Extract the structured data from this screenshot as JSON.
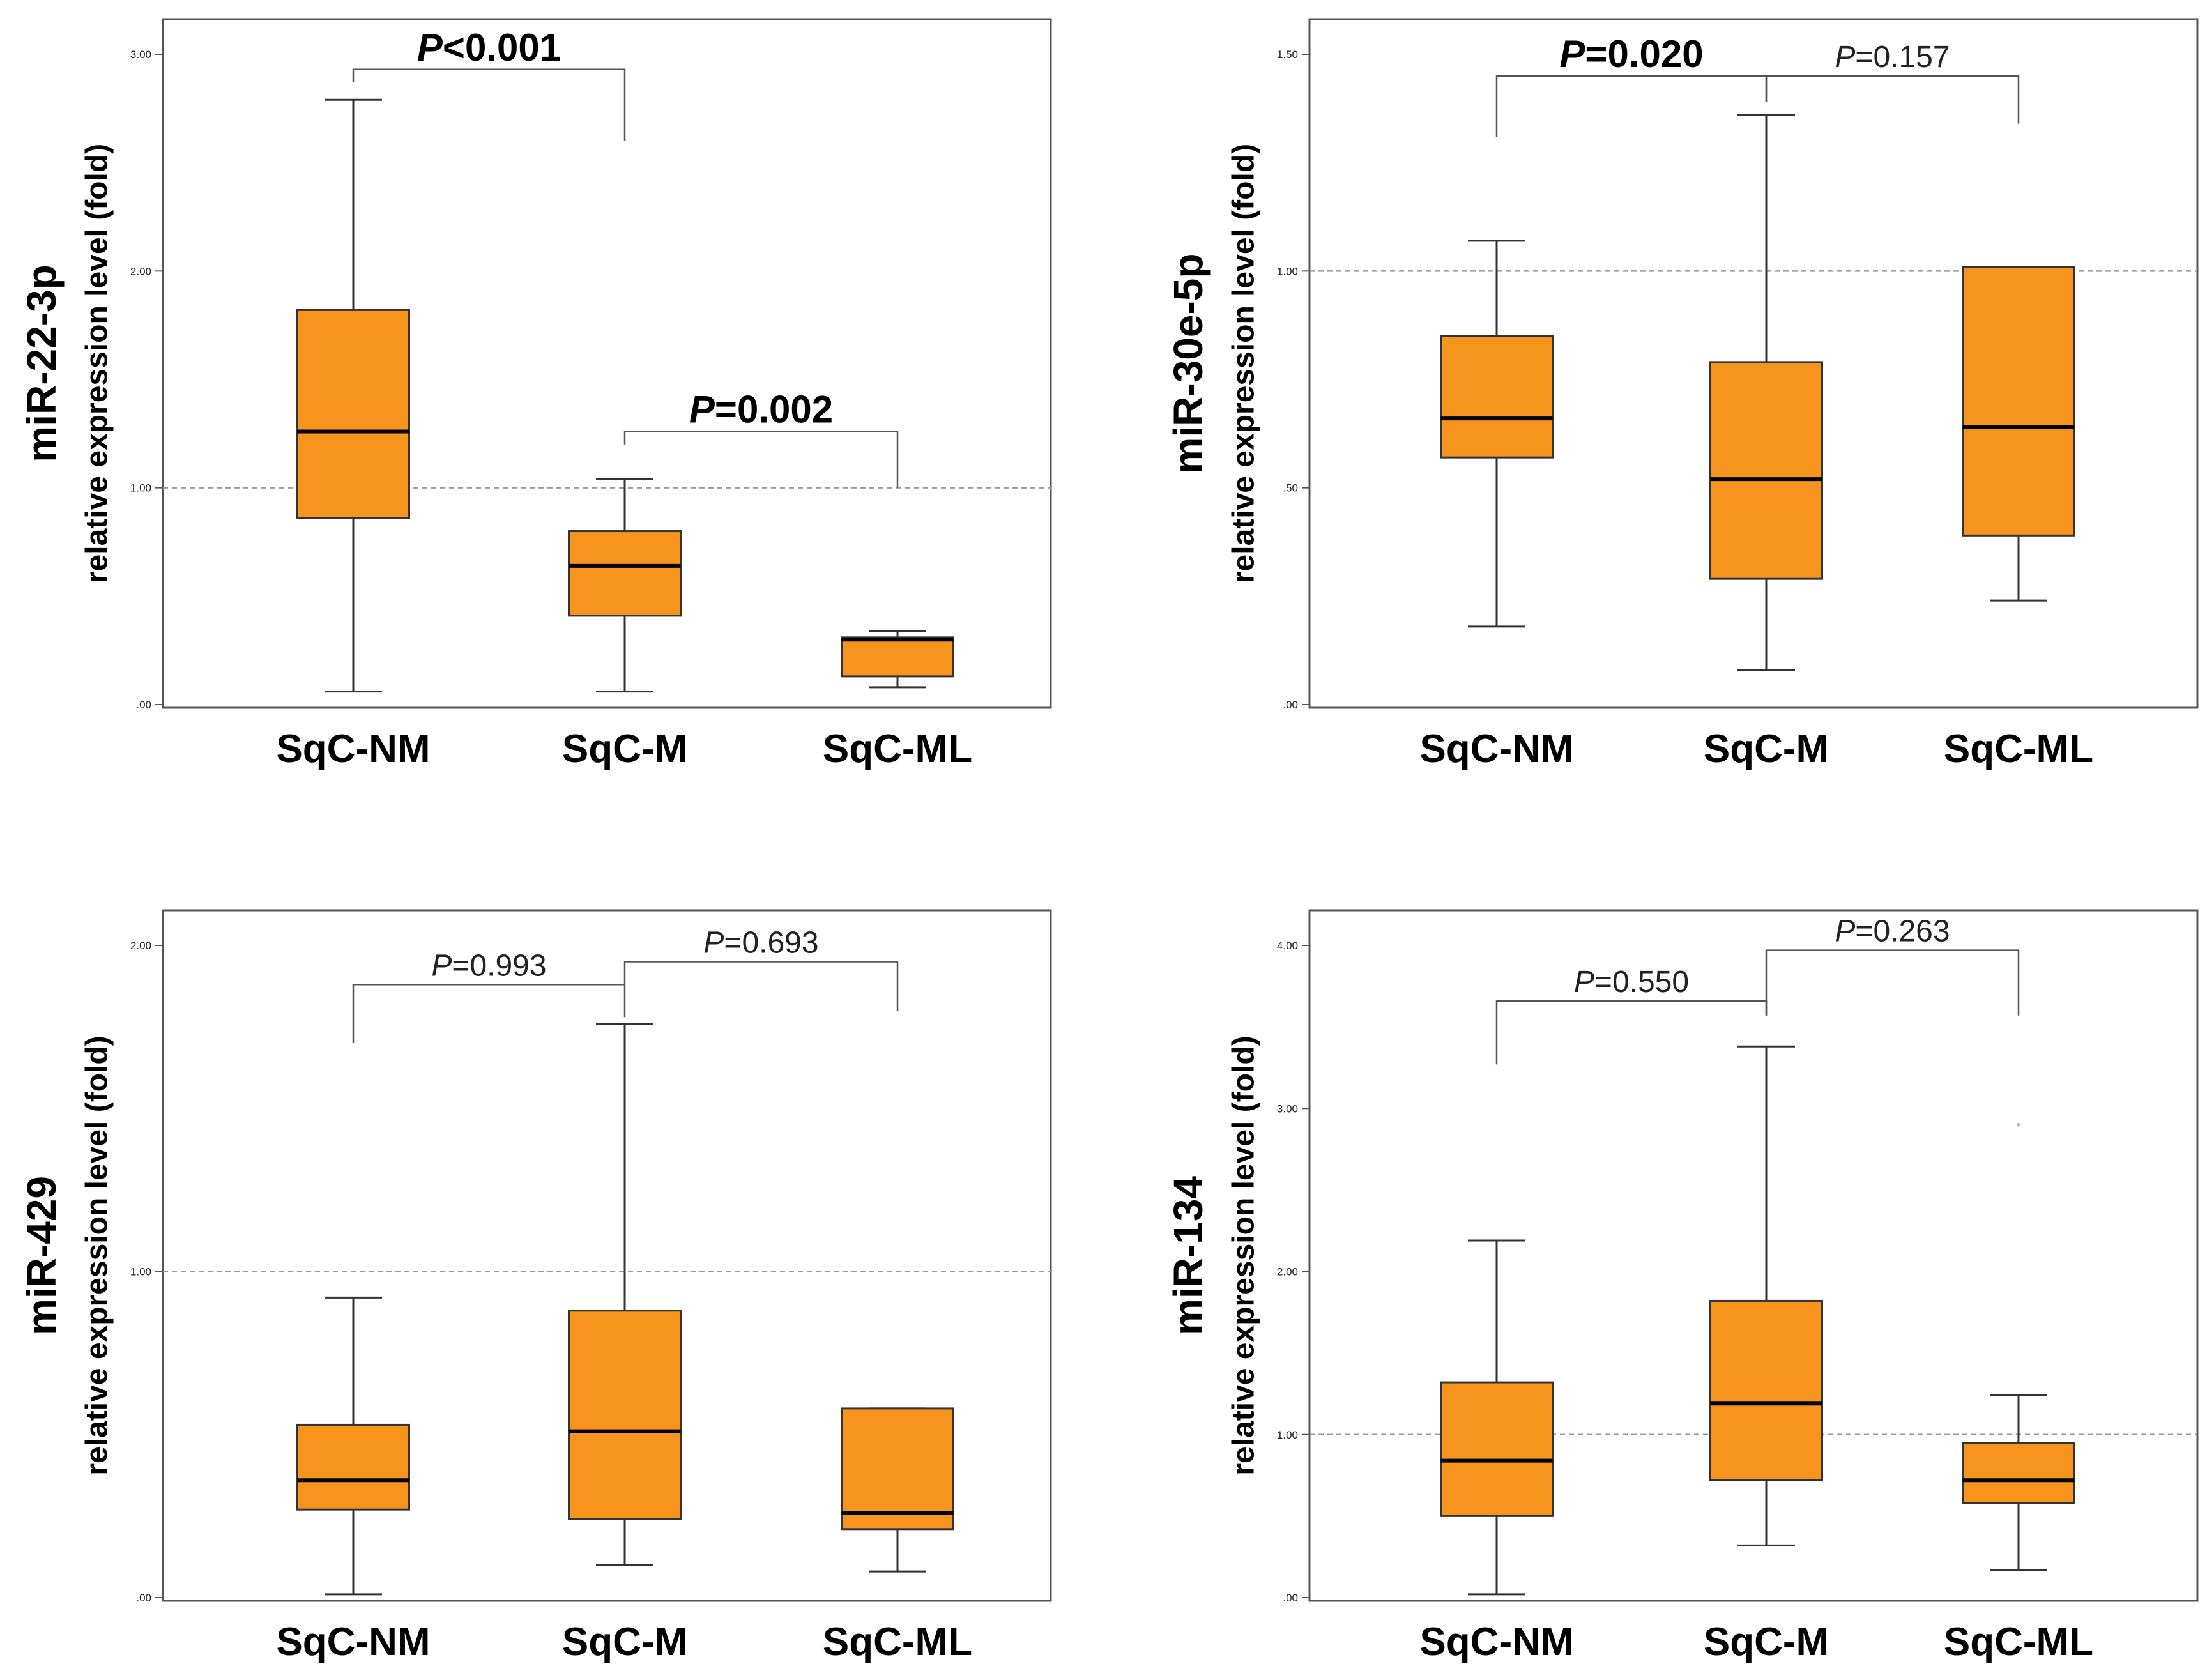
{
  "figure": {
    "background": "#ffffff",
    "box_fill": "#f7941d",
    "box_stroke": "#333333",
    "median_color": "#000000",
    "reference_line_color": "#999999"
  },
  "chart_data": [
    {
      "type": "box",
      "title": "",
      "ylabel_line1": "miR-22-3p",
      "ylabel_line2": "relative expression level (fold)",
      "ylim": [
        0,
        3
      ],
      "yticks": [
        ".00",
        "1.00",
        "2.00",
        "3.00"
      ],
      "reference_line": 1.0,
      "categories": [
        "SqC-NM",
        "SqC-M",
        "SqC-ML"
      ],
      "boxes": [
        {
          "category": "SqC-NM",
          "min": 0.06,
          "q1": 0.86,
          "median": 1.26,
          "q3": 1.82,
          "max": 2.79
        },
        {
          "category": "SqC-M",
          "min": 0.06,
          "q1": 0.41,
          "median": 0.64,
          "q3": 0.8,
          "max": 1.04
        },
        {
          "category": "SqC-ML",
          "min": 0.08,
          "q1": 0.13,
          "median": 0.3,
          "q3": 0.31,
          "max": 0.34
        }
      ],
      "comparisons": [
        {
          "from": 0,
          "to": 1,
          "label_prefix": "P",
          "label_rest": "<0.001",
          "significant": true,
          "bar_y": 2.93,
          "left_drop": 2.87,
          "right_drop": 2.6
        },
        {
          "from": 1,
          "to": 2,
          "label_prefix": "P",
          "label_rest": "=0.002",
          "significant": true,
          "bar_y": 1.26,
          "left_drop": 1.2,
          "right_drop": 1.0
        }
      ]
    },
    {
      "type": "box",
      "title": "",
      "ylabel_line1": "miR-30e-5p",
      "ylabel_line2": "relative expression level (fold)",
      "ylim": [
        0,
        1.5
      ],
      "yticks": [
        ".00",
        ".50",
        "1.00",
        "1.50"
      ],
      "reference_line": 1.0,
      "categories": [
        "SqC-NM",
        "SqC-M",
        "SqC-ML"
      ],
      "boxes": [
        {
          "category": "SqC-NM",
          "min": 0.18,
          "q1": 0.57,
          "median": 0.66,
          "q3": 0.85,
          "max": 1.07
        },
        {
          "category": "SqC-M",
          "min": 0.08,
          "q1": 0.29,
          "median": 0.52,
          "q3": 0.79,
          "max": 1.36
        },
        {
          "category": "SqC-ML",
          "min": 0.24,
          "q1": 0.39,
          "median": 0.64,
          "q3": 1.01,
          "max": 1.01
        }
      ],
      "comparisons": [
        {
          "from": 0,
          "to": 1,
          "label_prefix": "P",
          "label_rest": "=0.020",
          "significant": true,
          "bar_y": 1.45,
          "left_drop": 1.31,
          "right_drop": 1.39
        },
        {
          "from": 1,
          "to": 2,
          "label_prefix": "P",
          "label_rest": "=0.157",
          "significant": false,
          "bar_y": 1.45,
          "left_drop": 1.39,
          "right_drop": 1.34
        }
      ]
    },
    {
      "type": "box",
      "title": "",
      "ylabel_line1": "miR-429",
      "ylabel_line2": "relative expression level (fold)",
      "ylim": [
        0,
        2
      ],
      "yticks": [
        ".00",
        "1.00",
        "2.00"
      ],
      "reference_line": 1.0,
      "categories": [
        "SqC-NM",
        "SqC-M",
        "SqC-ML"
      ],
      "boxes": [
        {
          "category": "SqC-NM",
          "min": 0.01,
          "q1": 0.27,
          "median": 0.36,
          "q3": 0.53,
          "max": 0.92
        },
        {
          "category": "SqC-M",
          "min": 0.1,
          "q1": 0.24,
          "median": 0.51,
          "q3": 0.88,
          "max": 1.76
        },
        {
          "category": "SqC-ML",
          "min": 0.08,
          "q1": 0.21,
          "median": 0.26,
          "q3": 0.58,
          "max": 0.58
        }
      ],
      "comparisons": [
        {
          "from": 0,
          "to": 1,
          "label_prefix": "P",
          "label_rest": "=0.993",
          "significant": false,
          "bar_y": 1.88,
          "left_drop": 1.7,
          "right_drop": 1.78
        },
        {
          "from": 1,
          "to": 2,
          "label_prefix": "P",
          "label_rest": "=0.693",
          "significant": false,
          "bar_y": 1.95,
          "left_drop": 1.88,
          "right_drop": 1.8
        }
      ]
    },
    {
      "type": "box",
      "title": "",
      "ylabel_line1": "miR-134",
      "ylabel_line2": "relative expression level (fold)",
      "ylim": [
        0,
        4
      ],
      "yticks": [
        ".00",
        "1.00",
        "2.00",
        "3.00",
        "4.00"
      ],
      "reference_line": 1.0,
      "categories": [
        "SqC-NM",
        "SqC-M",
        "SqC-ML"
      ],
      "boxes": [
        {
          "category": "SqC-NM",
          "min": 0.02,
          "q1": 0.5,
          "median": 0.84,
          "q3": 1.32,
          "max": 2.19
        },
        {
          "category": "SqC-M",
          "min": 0.32,
          "q1": 0.72,
          "median": 1.19,
          "q3": 1.82,
          "max": 3.38
        },
        {
          "category": "SqC-ML",
          "min": 0.17,
          "q1": 0.58,
          "median": 0.72,
          "q3": 0.95,
          "max": 1.24
        }
      ],
      "comparisons": [
        {
          "from": 0,
          "to": 1,
          "label_prefix": "P",
          "label_rest": "=0.550",
          "significant": false,
          "bar_y": 3.66,
          "left_drop": 3.27,
          "right_drop": 3.57
        },
        {
          "from": 1,
          "to": 2,
          "label_prefix": "P",
          "label_rest": "=0.263",
          "significant": false,
          "bar_y": 3.97,
          "left_drop": 3.57,
          "right_drop": 3.57
        }
      ]
    }
  ]
}
